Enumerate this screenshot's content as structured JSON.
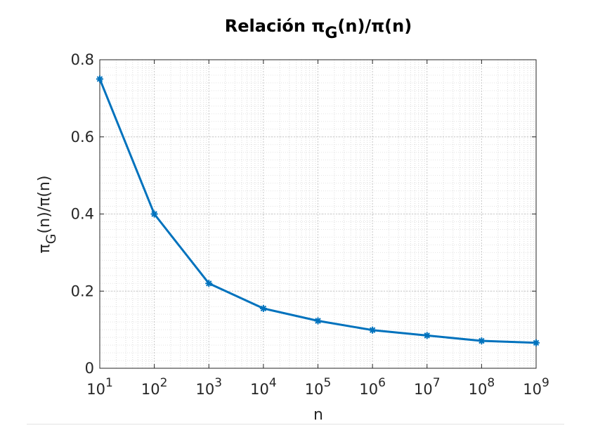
{
  "chart_data": {
    "type": "line",
    "title_main": "Relación  π",
    "title_sub": "G",
    "title_rest": "(n)/π(n)",
    "xlabel": "n",
    "ylabel_main": "π",
    "ylabel_sub": "G",
    "ylabel_rest": "(n)/π(n)",
    "x_scale": "log",
    "xlim": [
      10,
      1000000000
    ],
    "ylim": [
      0,
      0.8
    ],
    "grid": true,
    "minor_grid": true,
    "x_tick_base": "10",
    "x_tick_exponents": [
      "1",
      "2",
      "3",
      "4",
      "5",
      "6",
      "7",
      "8",
      "9"
    ],
    "y_ticks": [
      0,
      0.2,
      0.4,
      0.6,
      0.8
    ],
    "y_tick_labels": [
      "0",
      "0.2",
      "0.4",
      "0.6",
      "0.8"
    ],
    "line_color": "#0072BD",
    "marker": "asterisk",
    "series": [
      {
        "x": [
          10,
          100,
          1000,
          10000,
          100000,
          1000000,
          10000000,
          100000000,
          1000000000
        ],
        "values": [
          0.75,
          0.4,
          0.22,
          0.155,
          0.123,
          0.099,
          0.085,
          0.071,
          0.066
        ]
      }
    ]
  }
}
